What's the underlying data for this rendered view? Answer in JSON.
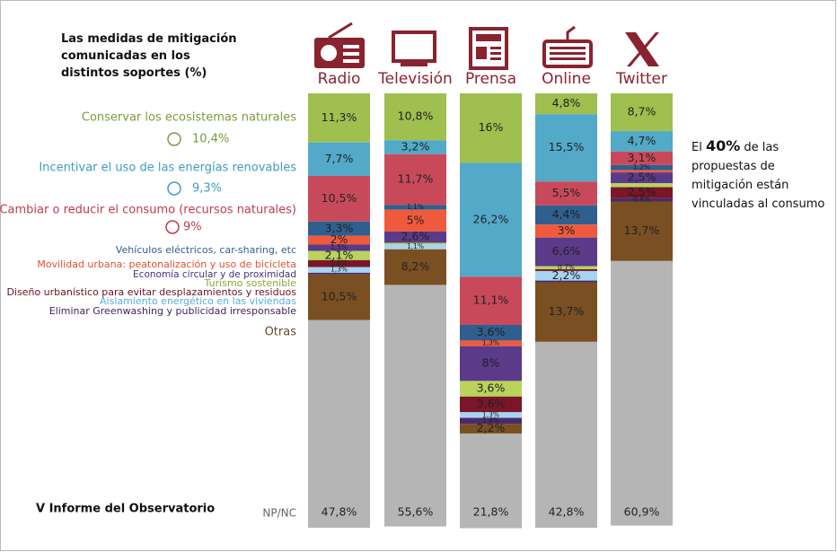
{
  "chart_data": {
    "type": "stacked-bar",
    "title": "Las medidas de mitigación comunicadas en los distintos soportes (%)",
    "footer": "V Informe del Observatorio",
    "note": {
      "before": "El",
      "highlight": "40%",
      "after": "de las propuestas de mitigación están vinculadas al consumo"
    },
    "categories": [
      "Radio",
      "Televisión",
      "Prensa",
      "Online",
      "Twitter"
    ],
    "ylim": [
      0,
      100
    ],
    "series": [
      {
        "name": "Conservar los ecosistemas naturales",
        "color": "#9fbf4f",
        "text_color": "#7f9a3c",
        "overall": 10.4,
        "overall_label": "10,4%",
        "values": [
          11.3,
          10.8,
          16,
          4.8,
          8.7
        ],
        "value_labels": [
          "11,3%",
          "10,8%",
          "16%",
          "4,8%",
          "8,7%"
        ]
      },
      {
        "name": "Incentivar el uso de las energías renovables",
        "color": "#52a9c8",
        "text_color": "#3f9cc0",
        "overall": 9.3,
        "overall_label": "9,3%",
        "values": [
          7.7,
          3.2,
          26.2,
          15.5,
          4.7
        ],
        "value_labels": [
          "7,7%",
          "3,2%",
          "26,2%",
          "15,5%",
          "4,7%"
        ]
      },
      {
        "name": "Cambiar o reducir el consumo (recursos naturales)",
        "color": "#c84a5a",
        "text_color": "#c03a4d",
        "overall": 9,
        "overall_label": "9%",
        "values": [
          10.5,
          11.7,
          11.1,
          5.5,
          3.1
        ],
        "value_labels": [
          "10,5%",
          "11,7%",
          "11,1%",
          "5,5%",
          "3,1%"
        ]
      },
      {
        "name": "Vehículos eléctricos, car-sharing, etc",
        "color": "#2f5f8f",
        "text_color": "#2f5f8f",
        "values": [
          3.3,
          1.1,
          3.6,
          4.4,
          1.2
        ],
        "value_labels": [
          "3,3%",
          "1,1%",
          "3,6%",
          "4,4%",
          "1,2%"
        ]
      },
      {
        "name": "Movilidad urbana: peatonalización y uso de bicicleta",
        "color": "#f05a3c",
        "text_color": "#e0502f",
        "values": [
          2,
          5,
          1.3,
          3,
          0.5
        ],
        "value_labels": [
          "2%",
          "5%",
          "1,3%",
          "3%",
          null
        ]
      },
      {
        "name": "Economía circular y de proximidad",
        "color": "#5b3a8a",
        "text_color": "#4b2f7a",
        "values": [
          1.5,
          2.6,
          8,
          6.6,
          2.5
        ],
        "value_labels": [
          "1,5%",
          "2,6%",
          "8%",
          "6,6%",
          "2,5%"
        ]
      },
      {
        "name": "Turismo sostenible",
        "color": "#b9d35c",
        "text_color": "#8aa83a",
        "values": [
          2.1,
          0.4,
          3.6,
          0.7,
          0.9
        ],
        "value_labels": [
          "2,1%",
          null,
          "3,6%",
          "0,7%",
          null
        ]
      },
      {
        "name": "Diseño urbanístico para evitar desplazamientos y residuos",
        "color": "#7a1628",
        "text_color": "#6a1222",
        "values": [
          1.6,
          0,
          3.6,
          0.4,
          2.5
        ],
        "value_labels": [
          "1,6%",
          null,
          "3,6%",
          null,
          "2,5%"
        ]
      },
      {
        "name": "Aislamiento energético en las viviendas",
        "color": "#a8d4f2",
        "text_color": "#55aee0",
        "values": [
          1.3,
          1.1,
          1.3,
          2.2,
          0
        ],
        "value_labels": [
          "1,3%",
          "1,1%",
          "1,3%",
          "2,2%",
          null
        ]
      },
      {
        "name": "Eliminar Greenwashing y publicidad irresponsable",
        "color": "#4a2a6a",
        "text_color": "#3f2560",
        "values": [
          0.4,
          0,
          1.4,
          0.4,
          0.8
        ],
        "value_labels": [
          null,
          null,
          "1,4%",
          null,
          "0,8%"
        ]
      },
      {
        "name": "Otras",
        "color": "#7a4f22",
        "text_color": "#6a4a2a",
        "values": [
          10.5,
          8.2,
          2.2,
          13.7,
          13.7
        ],
        "value_labels": [
          "10,5%",
          "8,2%",
          "2,2%",
          "13,7%",
          "13,7%"
        ]
      },
      {
        "name": "NP/NC",
        "color": "#b5b5b5",
        "text_color": "#666666",
        "values": [
          47.8,
          55.6,
          21.8,
          42.8,
          60.9
        ],
        "value_labels": [
          "47,8%",
          "55,6%",
          "21,8%",
          "42,8%",
          "60,9%"
        ]
      }
    ]
  }
}
